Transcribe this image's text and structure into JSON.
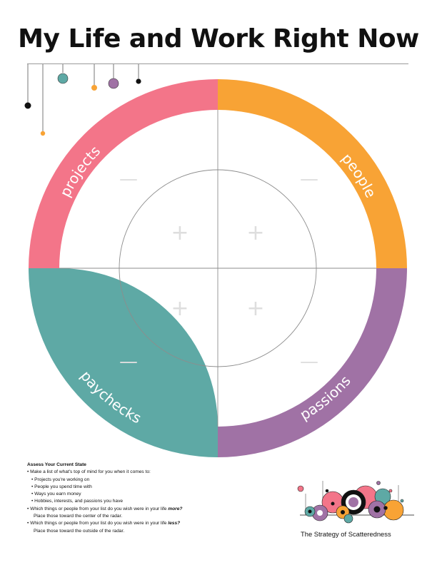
{
  "title": "My Life and Work Right Now",
  "colors": {
    "projects": "#f37589",
    "people": "#f8a335",
    "paychecks": "#5ea9a5",
    "passions": "#a072a5",
    "guide": "#8d8d8d",
    "marker": "#dedede"
  },
  "radar": {
    "quadrants": [
      {
        "key": "projects",
        "label": "projects"
      },
      {
        "key": "people",
        "label": "people"
      },
      {
        "key": "paychecks",
        "label": "paychecks"
      },
      {
        "key": "passions",
        "label": "passions"
      }
    ],
    "inner_marker": "+",
    "outer_marker": "—"
  },
  "instructions": {
    "heading": "Assess Your Current State",
    "lines": [
      {
        "indent": 1,
        "text": "• Make a list of what's top of mind for you when it comes to:"
      },
      {
        "indent": 2,
        "text": "• Projects you're working on"
      },
      {
        "indent": 2,
        "text": "• People you spend time with"
      },
      {
        "indent": 2,
        "text": "• Ways you earn money"
      },
      {
        "indent": 2,
        "text": "• Hobbies, interests, and passions you have"
      },
      {
        "indent": 1,
        "text": "• Which things or people from your list do you wish were in your life ",
        "emph": "more?"
      },
      {
        "indent": 3,
        "text": "Place those toward the center of the radar."
      },
      {
        "indent": 1,
        "text": "• Which things or people from your list do you wish were in your life ",
        "emph": "less?"
      },
      {
        "indent": 3,
        "text": "Place those toward the outside of the radar."
      }
    ]
  },
  "brand": {
    "text": "The Strategy of Scatteredness"
  }
}
